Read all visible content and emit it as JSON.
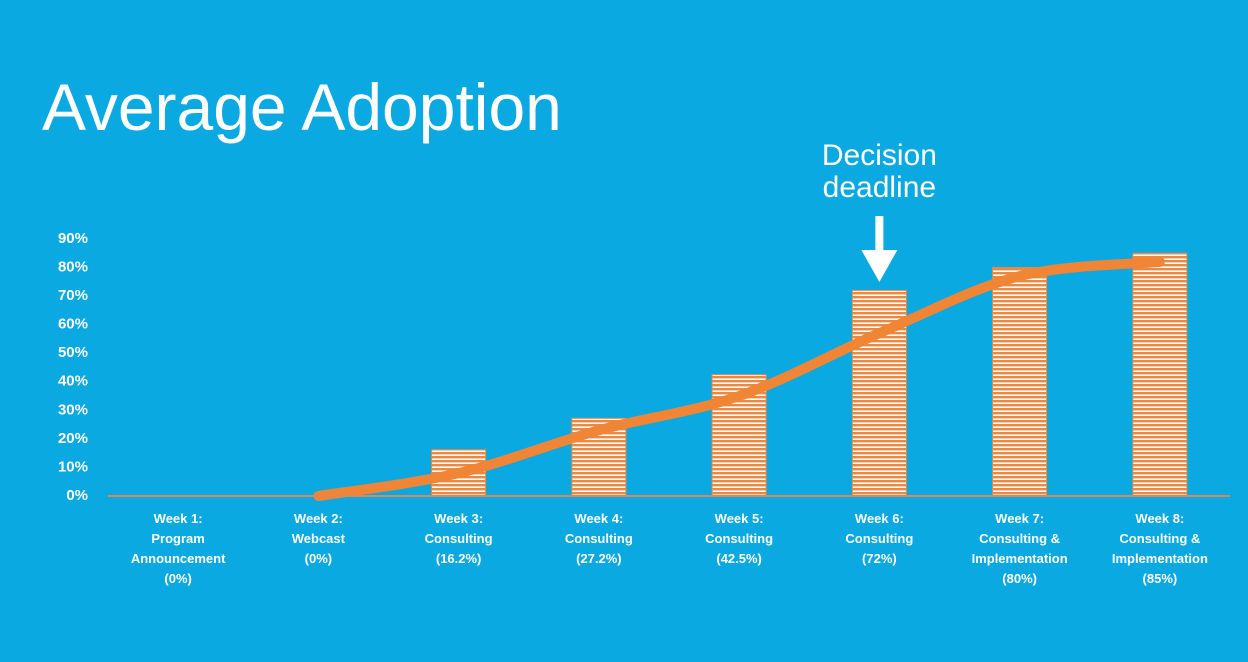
{
  "chart_data": {
    "type": "bar",
    "title": "Average Adoption",
    "annotation": [
      "Decision",
      "deadline"
    ],
    "annotation_category": 5,
    "background": "#0ba9e2",
    "text_color": "#ffffff",
    "categories": [
      [
        "Week 1:",
        "Program",
        "Announcement",
        "(0%)"
      ],
      [
        "Week 2:",
        "Webcast",
        "(0%)"
      ],
      [
        "Week 3:",
        "Consulting",
        "(16.2%)"
      ],
      [
        "Week 4:",
        "Consulting",
        "(27.2%)"
      ],
      [
        "Week 5:",
        "Consulting",
        "(42.5%)"
      ],
      [
        "Week 6:",
        "Consulting",
        "(72%)"
      ],
      [
        "Week 7:",
        "Consulting &",
        "Implementation",
        "(80%)"
      ],
      [
        "Week 8:",
        "Consulting &",
        "Implementation",
        "(85%)"
      ]
    ],
    "series": [
      {
        "type": "bar",
        "color": "#f0883a",
        "values": [
          0,
          0,
          16.2,
          27.2,
          42.5,
          72,
          80,
          85
        ]
      },
      {
        "type": "line",
        "color": "#ef8535",
        "values": [
          null,
          0,
          8,
          23,
          35,
          57,
          77,
          82
        ]
      }
    ],
    "ylim": [
      0,
      90
    ],
    "yticks": [
      {
        "value": 0,
        "label": "0%"
      },
      {
        "value": 10,
        "label": "10%"
      },
      {
        "value": 20,
        "label": "20%"
      },
      {
        "value": 30,
        "label": "30%"
      },
      {
        "value": 40,
        "label": "40%"
      },
      {
        "value": 50,
        "label": "50%"
      },
      {
        "value": 60,
        "label": "60%"
      },
      {
        "value": 70,
        "label": "70%"
      },
      {
        "value": 80,
        "label": "80%"
      },
      {
        "value": 90,
        "label": "90%"
      }
    ],
    "grid": false
  }
}
